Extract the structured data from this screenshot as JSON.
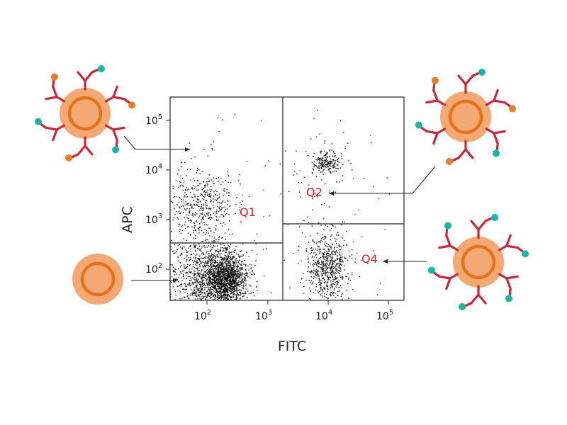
{
  "colors": {
    "quadrant_label": "#d11f2b",
    "antibody": "#c8283a",
    "fitc_tag": "#e87d23",
    "apc_tag": "#1ab5a8",
    "cell_outer": "#f4a873",
    "cell_ring": "#e3741c",
    "dots": "#111111"
  },
  "plot": {
    "x_label": "FITC",
    "y_label": "APC",
    "x_ticks": [
      {
        "base": "10",
        "exp": "2",
        "value": 100
      },
      {
        "base": "10",
        "exp": "3",
        "value": 1000
      },
      {
        "base": "10",
        "exp": "4",
        "value": 10000
      },
      {
        "base": "10",
        "exp": "5",
        "value": 100000
      }
    ],
    "y_ticks": [
      {
        "base": "10",
        "exp": "2",
        "value": 100
      },
      {
        "base": "10",
        "exp": "3",
        "value": 1000
      },
      {
        "base": "10",
        "exp": "4",
        "value": 10000
      },
      {
        "base": "10",
        "exp": "5",
        "value": 100000
      }
    ],
    "scale": "log",
    "quadrant_labels": {
      "q1": "Q1",
      "q2": "Q2",
      "q4": "Q4"
    }
  },
  "cells": {
    "top_left": {
      "antibody_tags": [
        "apc",
        "fitc",
        "apc",
        "fitc",
        "apc",
        "fitc"
      ]
    },
    "top_right": {
      "antibody_tags": [
        "apc",
        "fitc",
        "apc",
        "fitc",
        "apc",
        "fitc"
      ]
    },
    "bottom_left": {
      "antibody_tags": []
    },
    "bottom_right": {
      "antibody_tags": [
        "apc",
        "apc",
        "apc",
        "apc",
        "apc",
        "apc"
      ]
    }
  }
}
